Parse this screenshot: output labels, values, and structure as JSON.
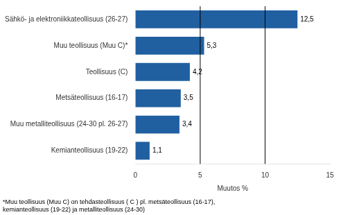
{
  "chart_data": {
    "type": "bar",
    "orientation": "horizontal",
    "categories": [
      "Kemianteollisuus (19-22)",
      "Muu metalliteollisuus (24-30 pl. 26-27)",
      "Metsäteollisuus (16-17)",
      "Teollisuus (C)",
      "Muu teollisuus (Muu C)*",
      "Sähkö- ja elektroniikkateollisuus (26-27)"
    ],
    "values": [
      1.1,
      3.4,
      3.5,
      4.2,
      5.3,
      12.5
    ],
    "value_labels": [
      "1,1",
      "3,4",
      "3,5",
      "4,2",
      "5,3",
      "12,5"
    ],
    "data_labels": true,
    "color": "#2060a0",
    "xlim": [
      0,
      15
    ],
    "xticks": [
      0,
      5,
      10,
      15
    ],
    "xlabel": "Muutos %",
    "vlines": [
      5,
      10
    ],
    "footnote": "*Muu teollisuus (Muu C) on tehdasteollisuus ( C ) pl. metsäteollisuus (16-17),\nkemianteollisuus (19-22) ja metalliteollisuus (24-30)",
    "grid": false
  }
}
